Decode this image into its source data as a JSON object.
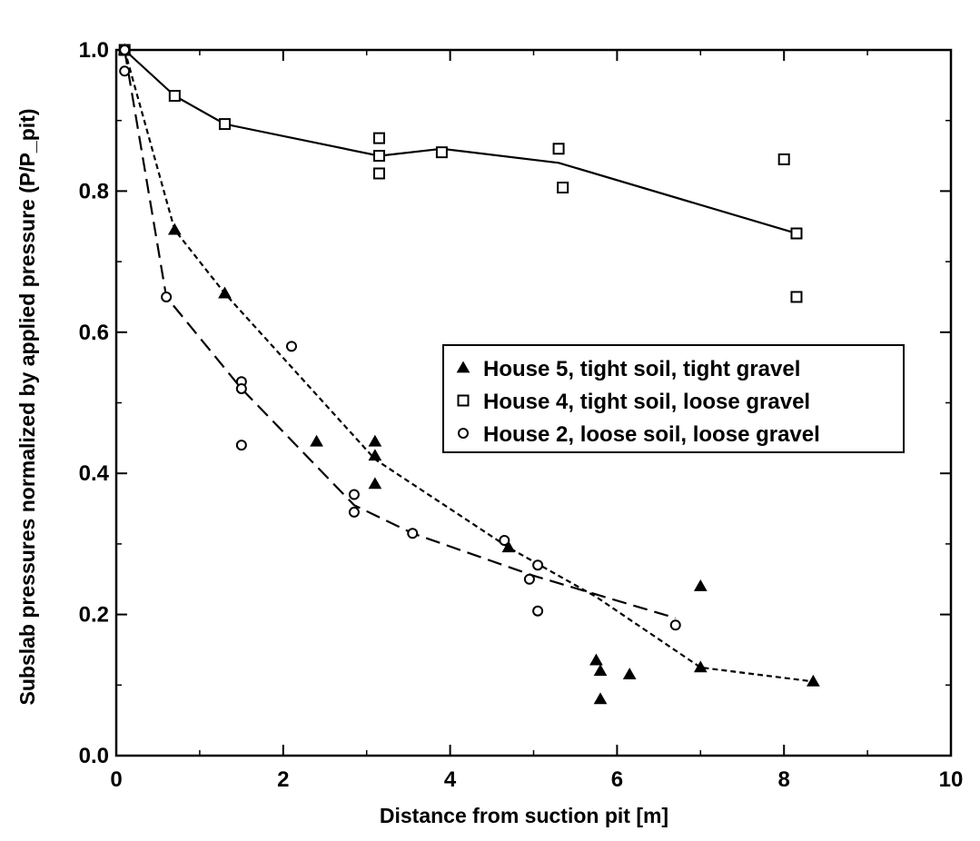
{
  "chart_data": {
    "type": "scatter",
    "title": "",
    "xlabel": "Distance from suction pit [m]",
    "ylabel": "Subslab pressures normalized by applied pressure (P/P_pit)",
    "xlim": [
      0,
      10
    ],
    "ylim": [
      0,
      1.0
    ],
    "x_ticks": [
      "0",
      "2",
      "4",
      "6",
      "8",
      "10"
    ],
    "y_ticks": [
      "0.0",
      "0.2",
      "0.4",
      "0.6",
      "0.8",
      "1.0"
    ],
    "legend_position": "center-right",
    "grid": false,
    "series": [
      {
        "name": "House 5, tight soil, tight gravel",
        "marker": "filled-triangle",
        "line": "short-dash",
        "points": [
          [
            0.1,
            1.0
          ],
          [
            0.7,
            0.745
          ],
          [
            1.3,
            0.655
          ],
          [
            2.4,
            0.445
          ],
          [
            3.1,
            0.445
          ],
          [
            3.1,
            0.425
          ],
          [
            3.1,
            0.385
          ],
          [
            4.7,
            0.295
          ],
          [
            5.75,
            0.135
          ],
          [
            5.8,
            0.12
          ],
          [
            5.8,
            0.08
          ],
          [
            6.15,
            0.115
          ],
          [
            7.0,
            0.24
          ],
          [
            7.0,
            0.125
          ],
          [
            8.35,
            0.105
          ]
        ],
        "fit_line": [
          [
            0.1,
            1.0
          ],
          [
            0.7,
            0.745
          ],
          [
            1.3,
            0.655
          ],
          [
            3.1,
            0.42
          ],
          [
            4.7,
            0.295
          ],
          [
            5.75,
            0.225
          ],
          [
            7.0,
            0.125
          ],
          [
            8.35,
            0.105
          ]
        ]
      },
      {
        "name": "House 4, tight soil, loose gravel",
        "marker": "open-square",
        "line": "solid",
        "points": [
          [
            0.1,
            1.0
          ],
          [
            0.7,
            0.935
          ],
          [
            1.3,
            0.895
          ],
          [
            3.15,
            0.875
          ],
          [
            3.15,
            0.85
          ],
          [
            3.15,
            0.825
          ],
          [
            3.9,
            0.855
          ],
          [
            5.3,
            0.86
          ],
          [
            5.35,
            0.805
          ],
          [
            8.0,
            0.845
          ],
          [
            8.15,
            0.74
          ],
          [
            8.15,
            0.65
          ]
        ],
        "fit_line": [
          [
            0.1,
            1.0
          ],
          [
            0.7,
            0.935
          ],
          [
            1.3,
            0.895
          ],
          [
            3.15,
            0.85
          ],
          [
            3.9,
            0.86
          ],
          [
            5.3,
            0.84
          ],
          [
            8.15,
            0.74
          ]
        ]
      },
      {
        "name": "House 2, loose soil, loose gravel",
        "marker": "open-circle",
        "line": "long-dash",
        "points": [
          [
            0.1,
            1.0
          ],
          [
            0.1,
            0.97
          ],
          [
            0.6,
            0.65
          ],
          [
            1.5,
            0.53
          ],
          [
            1.5,
            0.52
          ],
          [
            1.5,
            0.44
          ],
          [
            2.1,
            0.58
          ],
          [
            2.85,
            0.37
          ],
          [
            2.85,
            0.345
          ],
          [
            3.55,
            0.315
          ],
          [
            4.65,
            0.305
          ],
          [
            4.95,
            0.25
          ],
          [
            5.05,
            0.27
          ],
          [
            5.05,
            0.205
          ],
          [
            6.7,
            0.185
          ]
        ],
        "fit_line": [
          [
            0.1,
            1.0
          ],
          [
            0.6,
            0.65
          ],
          [
            1.5,
            0.52
          ],
          [
            2.85,
            0.355
          ],
          [
            3.55,
            0.315
          ],
          [
            5.0,
            0.255
          ],
          [
            6.7,
            0.195
          ]
        ]
      }
    ],
    "colors": {
      "ink": "#000000",
      "background": "#ffffff"
    }
  }
}
